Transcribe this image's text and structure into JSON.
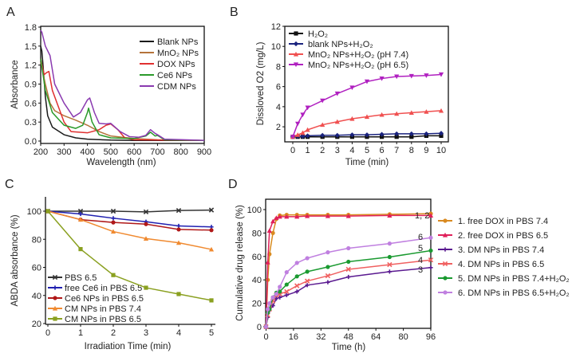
{
  "chart_data": [
    {
      "label": "A",
      "type": "line",
      "xlabel": "Wavelength (nm)",
      "ylabel": "Absorbance",
      "xlim": [
        200,
        900
      ],
      "ylim": [
        0,
        1.8
      ],
      "xticks": [
        "200",
        "300",
        "400",
        "500",
        "600",
        "700",
        "800",
        "900"
      ],
      "yticks": [
        "0.0",
        "0.3",
        "0.6",
        "0.9",
        "1.2",
        "1.5",
        "1.8"
      ],
      "frame": "box",
      "legend": "top-right",
      "series": [
        {
          "name": "Blank NPs",
          "color": "#1a1a1a",
          "marker": "none",
          "x": [
            200,
            205,
            210,
            215,
            220,
            230,
            250,
            300,
            350,
            400,
            500,
            600,
            900
          ],
          "y": [
            1.5,
            1.42,
            1.2,
            0.95,
            0.7,
            0.4,
            0.22,
            0.1,
            0.05,
            0.03,
            0.015,
            0.01,
            0.01
          ]
        },
        {
          "name": "MnO₂ NPs",
          "color": "#b5733a",
          "marker": "none",
          "x": [
            200,
            220,
            240,
            260,
            300,
            350,
            400,
            450,
            500,
            600,
            700,
            900
          ],
          "y": [
            1.25,
            0.9,
            0.6,
            0.48,
            0.4,
            0.33,
            0.25,
            0.15,
            0.08,
            0.04,
            0.02,
            0.01
          ]
        },
        {
          "name": "DOX NPs",
          "color": "#e03030",
          "marker": "none",
          "x": [
            200,
            215,
            225,
            235,
            250,
            270,
            300,
            330,
            400,
            450,
            480,
            500,
            530,
            560,
            600,
            900
          ],
          "y": [
            1.3,
            1.05,
            1.08,
            1.1,
            0.8,
            0.6,
            0.3,
            0.15,
            0.13,
            0.18,
            0.25,
            0.27,
            0.18,
            0.05,
            0.02,
            0.01
          ]
        },
        {
          "name": "Ce6 NPs",
          "color": "#2a9a2a",
          "marker": "none",
          "x": [
            200,
            220,
            250,
            300,
            350,
            380,
            400,
            405,
            420,
            450,
            500,
            600,
            650,
            670,
            690,
            700,
            730,
            900
          ],
          "y": [
            1.3,
            0.8,
            0.45,
            0.25,
            0.2,
            0.25,
            0.45,
            0.52,
            0.3,
            0.1,
            0.05,
            0.04,
            0.08,
            0.14,
            0.08,
            0.09,
            0.02,
            0.01
          ]
        },
        {
          "name": "CDM NPs",
          "color": "#8a3ab0",
          "marker": "none",
          "x": [
            200,
            205,
            220,
            240,
            260,
            300,
            340,
            370,
            400,
            410,
            430,
            450,
            480,
            500,
            540,
            580,
            620,
            650,
            670,
            690,
            700,
            730,
            900
          ],
          "y": [
            1.75,
            1.72,
            1.5,
            1.35,
            0.9,
            0.6,
            0.38,
            0.45,
            0.65,
            0.68,
            0.45,
            0.28,
            0.27,
            0.28,
            0.15,
            0.07,
            0.06,
            0.09,
            0.18,
            0.12,
            0.1,
            0.03,
            0.01
          ]
        }
      ]
    },
    {
      "label": "B",
      "type": "line",
      "xlabel": "Time (min)",
      "ylabel": "Dissloved O2 (mg/L)",
      "xlim": [
        0,
        10
      ],
      "ylim": [
        0.5,
        12
      ],
      "xticks": [
        "0",
        "1",
        "2",
        "3",
        "4",
        "5",
        "6",
        "7",
        "8",
        "9",
        "10"
      ],
      "yticks": [
        "2",
        "4",
        "6",
        "8",
        "10",
        "12"
      ],
      "frame": "box",
      "legend": "top-left",
      "series": [
        {
          "name": "H₂O₂",
          "color": "#111111",
          "marker": "square",
          "x": [
            0,
            0.33,
            0.67,
            1,
            2,
            3,
            4,
            5,
            6,
            7,
            8,
            9,
            10
          ],
          "y": [
            1.0,
            1.0,
            1.0,
            1.0,
            1.0,
            1.0,
            1.0,
            1.0,
            1.0,
            1.0,
            1.0,
            1.1,
            1.1
          ]
        },
        {
          "name": "blank NPs+H₂O₂",
          "color": "#1a237e",
          "marker": "diamond",
          "x": [
            0,
            0.33,
            0.67,
            1,
            2,
            3,
            4,
            5,
            6,
            7,
            8,
            9,
            10
          ],
          "y": [
            1.0,
            1.05,
            1.05,
            1.1,
            1.15,
            1.15,
            1.2,
            1.2,
            1.25,
            1.3,
            1.3,
            1.3,
            1.35
          ]
        },
        {
          "name": "MnO₂ NPs+H₂O₂ (pH 7.4)",
          "color": "#f05050",
          "marker": "triangle",
          "x": [
            0,
            0.33,
            0.67,
            1,
            2,
            3,
            4,
            5,
            6,
            7,
            8,
            9,
            10
          ],
          "y": [
            1.0,
            1.2,
            1.4,
            1.7,
            2.2,
            2.5,
            2.8,
            3.0,
            3.2,
            3.3,
            3.4,
            3.5,
            3.6
          ]
        },
        {
          "name": "MnO₂ NPs+H₂O₂ (pH 6.5)",
          "color": "#b020c0",
          "marker": "triangle-down",
          "x": [
            0,
            0.33,
            0.67,
            1,
            2,
            3,
            4,
            5,
            6,
            7,
            8,
            9,
            10
          ],
          "y": [
            1.0,
            2.3,
            3.2,
            3.9,
            4.6,
            5.3,
            5.9,
            6.5,
            6.8,
            7.0,
            7.05,
            7.1,
            7.2
          ]
        }
      ]
    },
    {
      "label": "C",
      "type": "line",
      "xlabel": "Irradiation Time (min)",
      "ylabel": "ABDA absorbance (%)",
      "xlim": [
        0,
        5
      ],
      "ylim": [
        20,
        110
      ],
      "xticks": [
        "0",
        "1",
        "2",
        "3",
        "4",
        "5"
      ],
      "yticks": [
        "20",
        "40",
        "60",
        "80",
        "100"
      ],
      "frame": "open",
      "legend": "bottom-left",
      "series": [
        {
          "name": "PBS 6.5",
          "color": "#333333",
          "marker": "cross",
          "x": [
            0,
            1,
            2,
            3,
            4,
            5
          ],
          "y": [
            100,
            100,
            100,
            99.5,
            100.5,
            100.8
          ]
        },
        {
          "name": "free Ce6 in PBS 6.5",
          "color": "#2020b0",
          "marker": "plus",
          "x": [
            0,
            1,
            2,
            3,
            4,
            5
          ],
          "y": [
            100,
            98,
            95,
            92.5,
            89.5,
            88.8
          ]
        },
        {
          "name": "Ce6 NPs in PBS 6.5",
          "color": "#b01818",
          "marker": "circle",
          "x": [
            0,
            1,
            2,
            3,
            4,
            5
          ],
          "y": [
            100,
            94,
            92,
            90.8,
            87,
            86.5
          ]
        },
        {
          "name": "CM NPs in PBS 7.4",
          "color": "#f08a30",
          "marker": "triangle",
          "x": [
            0,
            1,
            2,
            3,
            4,
            5
          ],
          "y": [
            100,
            94,
            85.5,
            80.5,
            77.5,
            72.8
          ]
        },
        {
          "name": "CM NPs in PBS 6.5",
          "color": "#8aa020",
          "marker": "square",
          "x": [
            0,
            1,
            2,
            3,
            4,
            5
          ],
          "y": [
            100,
            73,
            54.5,
            45.5,
            41,
            36.5
          ]
        }
      ]
    },
    {
      "label": "D",
      "type": "line",
      "xlabel": "Time (h)",
      "ylabel": "Cumulative drug release (%)",
      "xlim": [
        -5,
        114
      ],
      "ylim": [
        -5,
        110
      ],
      "xticks": [
        "0",
        "16",
        "32",
        "48",
        "64",
        "80",
        "96"
      ],
      "yticks": [
        "0",
        "20",
        "40",
        "60",
        "80",
        "100"
      ],
      "frame": "box",
      "legend": "right",
      "annotations": [
        "1, 2",
        "6",
        "5",
        "4",
        "3"
      ],
      "series": [
        {
          "name": "1. free DOX in PBS 7.4",
          "color": "#d98a20",
          "marker": "circle",
          "x": [
            0,
            1,
            2,
            4,
            6,
            8,
            12,
            18,
            24,
            36,
            48,
            72,
            96
          ],
          "y": [
            0,
            40,
            62,
            80,
            92,
            95,
            95.5,
            95.5,
            95.5,
            95.5,
            95.5,
            96,
            96.5
          ]
        },
        {
          "name": "2. free DOX in PBS 6.5",
          "color": "#e0205a",
          "marker": "triangle",
          "x": [
            0,
            1,
            2,
            4,
            6,
            8,
            12,
            18,
            24,
            36,
            48,
            72,
            96
          ],
          "y": [
            0,
            55,
            82,
            90,
            93,
            94,
            94,
            94,
            94.5,
            94.5,
            94.5,
            95,
            95
          ]
        },
        {
          "name": "3. DM NPs in PBS 7.4",
          "color": "#5a1a90",
          "marker": "plus",
          "x": [
            0,
            1,
            2,
            4,
            6,
            8,
            12,
            18,
            24,
            36,
            48,
            72,
            96
          ],
          "y": [
            0,
            8,
            14,
            18,
            24,
            25,
            27,
            30,
            35.5,
            38,
            42.5,
            47,
            50.5
          ]
        },
        {
          "name": "4. DM NPs in PBS 6.5",
          "color": "#f06060",
          "marker": "cross",
          "x": [
            0,
            1,
            2,
            4,
            6,
            8,
            12,
            18,
            24,
            36,
            48,
            72,
            96
          ],
          "y": [
            0,
            10,
            15,
            22,
            27,
            28,
            30,
            35,
            39,
            43.5,
            49,
            53,
            57
          ]
        },
        {
          "name": "5. DM NPs in PBS 7.4+H₂O₂",
          "color": "#1a9a30",
          "marker": "circle",
          "x": [
            0,
            1,
            2,
            4,
            6,
            8,
            12,
            18,
            24,
            36,
            48,
            72,
            96
          ],
          "y": [
            0,
            12,
            15,
            25,
            29,
            30,
            36,
            43,
            47,
            51,
            55.5,
            59.5,
            65
          ]
        },
        {
          "name": "6. DM NPs in PBS 6.5+H₂O₂",
          "color": "#c080e0",
          "marker": "circle",
          "x": [
            0,
            1,
            2,
            4,
            6,
            8,
            12,
            18,
            24,
            36,
            48,
            72,
            96
          ],
          "y": [
            0,
            15,
            20,
            25,
            28,
            34,
            46.5,
            54.5,
            58.5,
            63.5,
            67,
            71,
            76
          ]
        }
      ]
    }
  ]
}
